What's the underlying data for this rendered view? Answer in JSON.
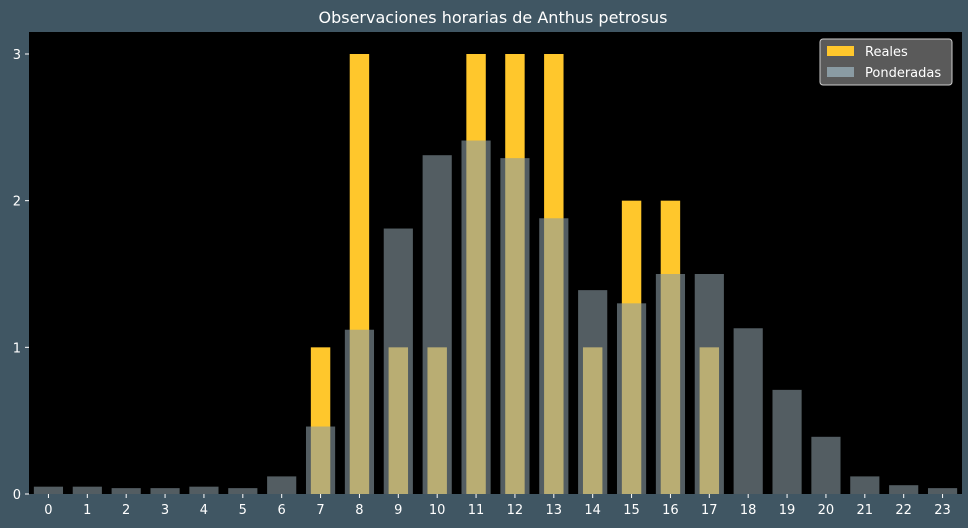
{
  "chart_data": {
    "type": "bar",
    "title": "Observaciones horarias de Anthus petrosus",
    "xlabel": "",
    "ylabel": "",
    "categories": [
      "0",
      "1",
      "2",
      "3",
      "4",
      "5",
      "6",
      "7",
      "8",
      "9",
      "10",
      "11",
      "12",
      "13",
      "14",
      "15",
      "16",
      "17",
      "18",
      "19",
      "20",
      "21",
      "22",
      "23"
    ],
    "series": [
      {
        "name": "Reales",
        "color": "#ffc72c",
        "values": [
          0,
          0,
          0,
          0,
          0,
          0,
          0,
          1,
          3,
          1,
          1,
          3,
          3,
          3,
          1,
          2,
          2,
          1,
          0,
          0,
          0,
          0,
          0,
          0
        ]
      },
      {
        "name": "Ponderadas",
        "color": "#8a9ba3",
        "opacity": 0.6,
        "values": [
          0.05,
          0.05,
          0.04,
          0.04,
          0.05,
          0.04,
          0.12,
          0.46,
          1.12,
          1.81,
          2.31,
          2.41,
          2.29,
          1.88,
          1.39,
          1.3,
          1.5,
          1.5,
          1.13,
          0.71,
          0.39,
          0.12,
          0.06,
          0.04
        ]
      }
    ],
    "ylim": [
      0,
      3.15
    ],
    "yticks": [
      "0",
      "1",
      "2",
      "3"
    ],
    "grid": false,
    "legend_position": "top-right",
    "colors": {
      "background": "#405663",
      "plot_area": "#000000",
      "text": "#ffffff",
      "legend_bg": "#5a5a5a",
      "legend_border": "#cccccc"
    }
  }
}
